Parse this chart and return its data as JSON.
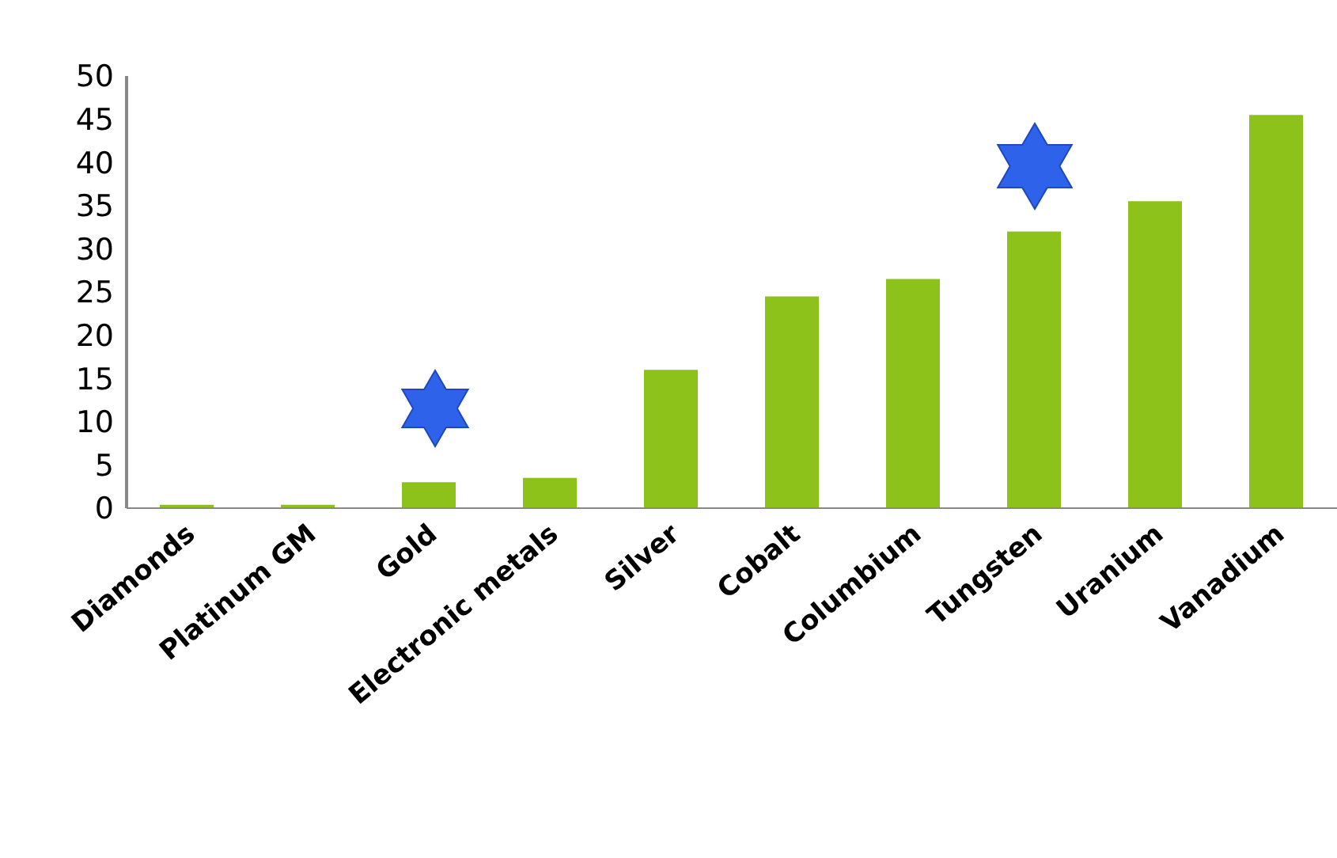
{
  "chart_data": {
    "type": "bar",
    "categories": [
      "Diamonds",
      "Platinum GM",
      "Gold",
      "Electronic metals",
      "Silver",
      "Cobalt",
      "Columbium",
      "Tungsten",
      "Uranium",
      "Vanadium"
    ],
    "values": [
      0.4,
      0.4,
      3,
      3.5,
      16,
      24.5,
      26.5,
      32,
      35.5,
      45.5
    ],
    "color": "#8dc21a",
    "ylim": [
      0,
      50
    ],
    "yticks": [
      0,
      5,
      10,
      15,
      20,
      25,
      30,
      35,
      40,
      45,
      50
    ],
    "grid": false
  }
}
